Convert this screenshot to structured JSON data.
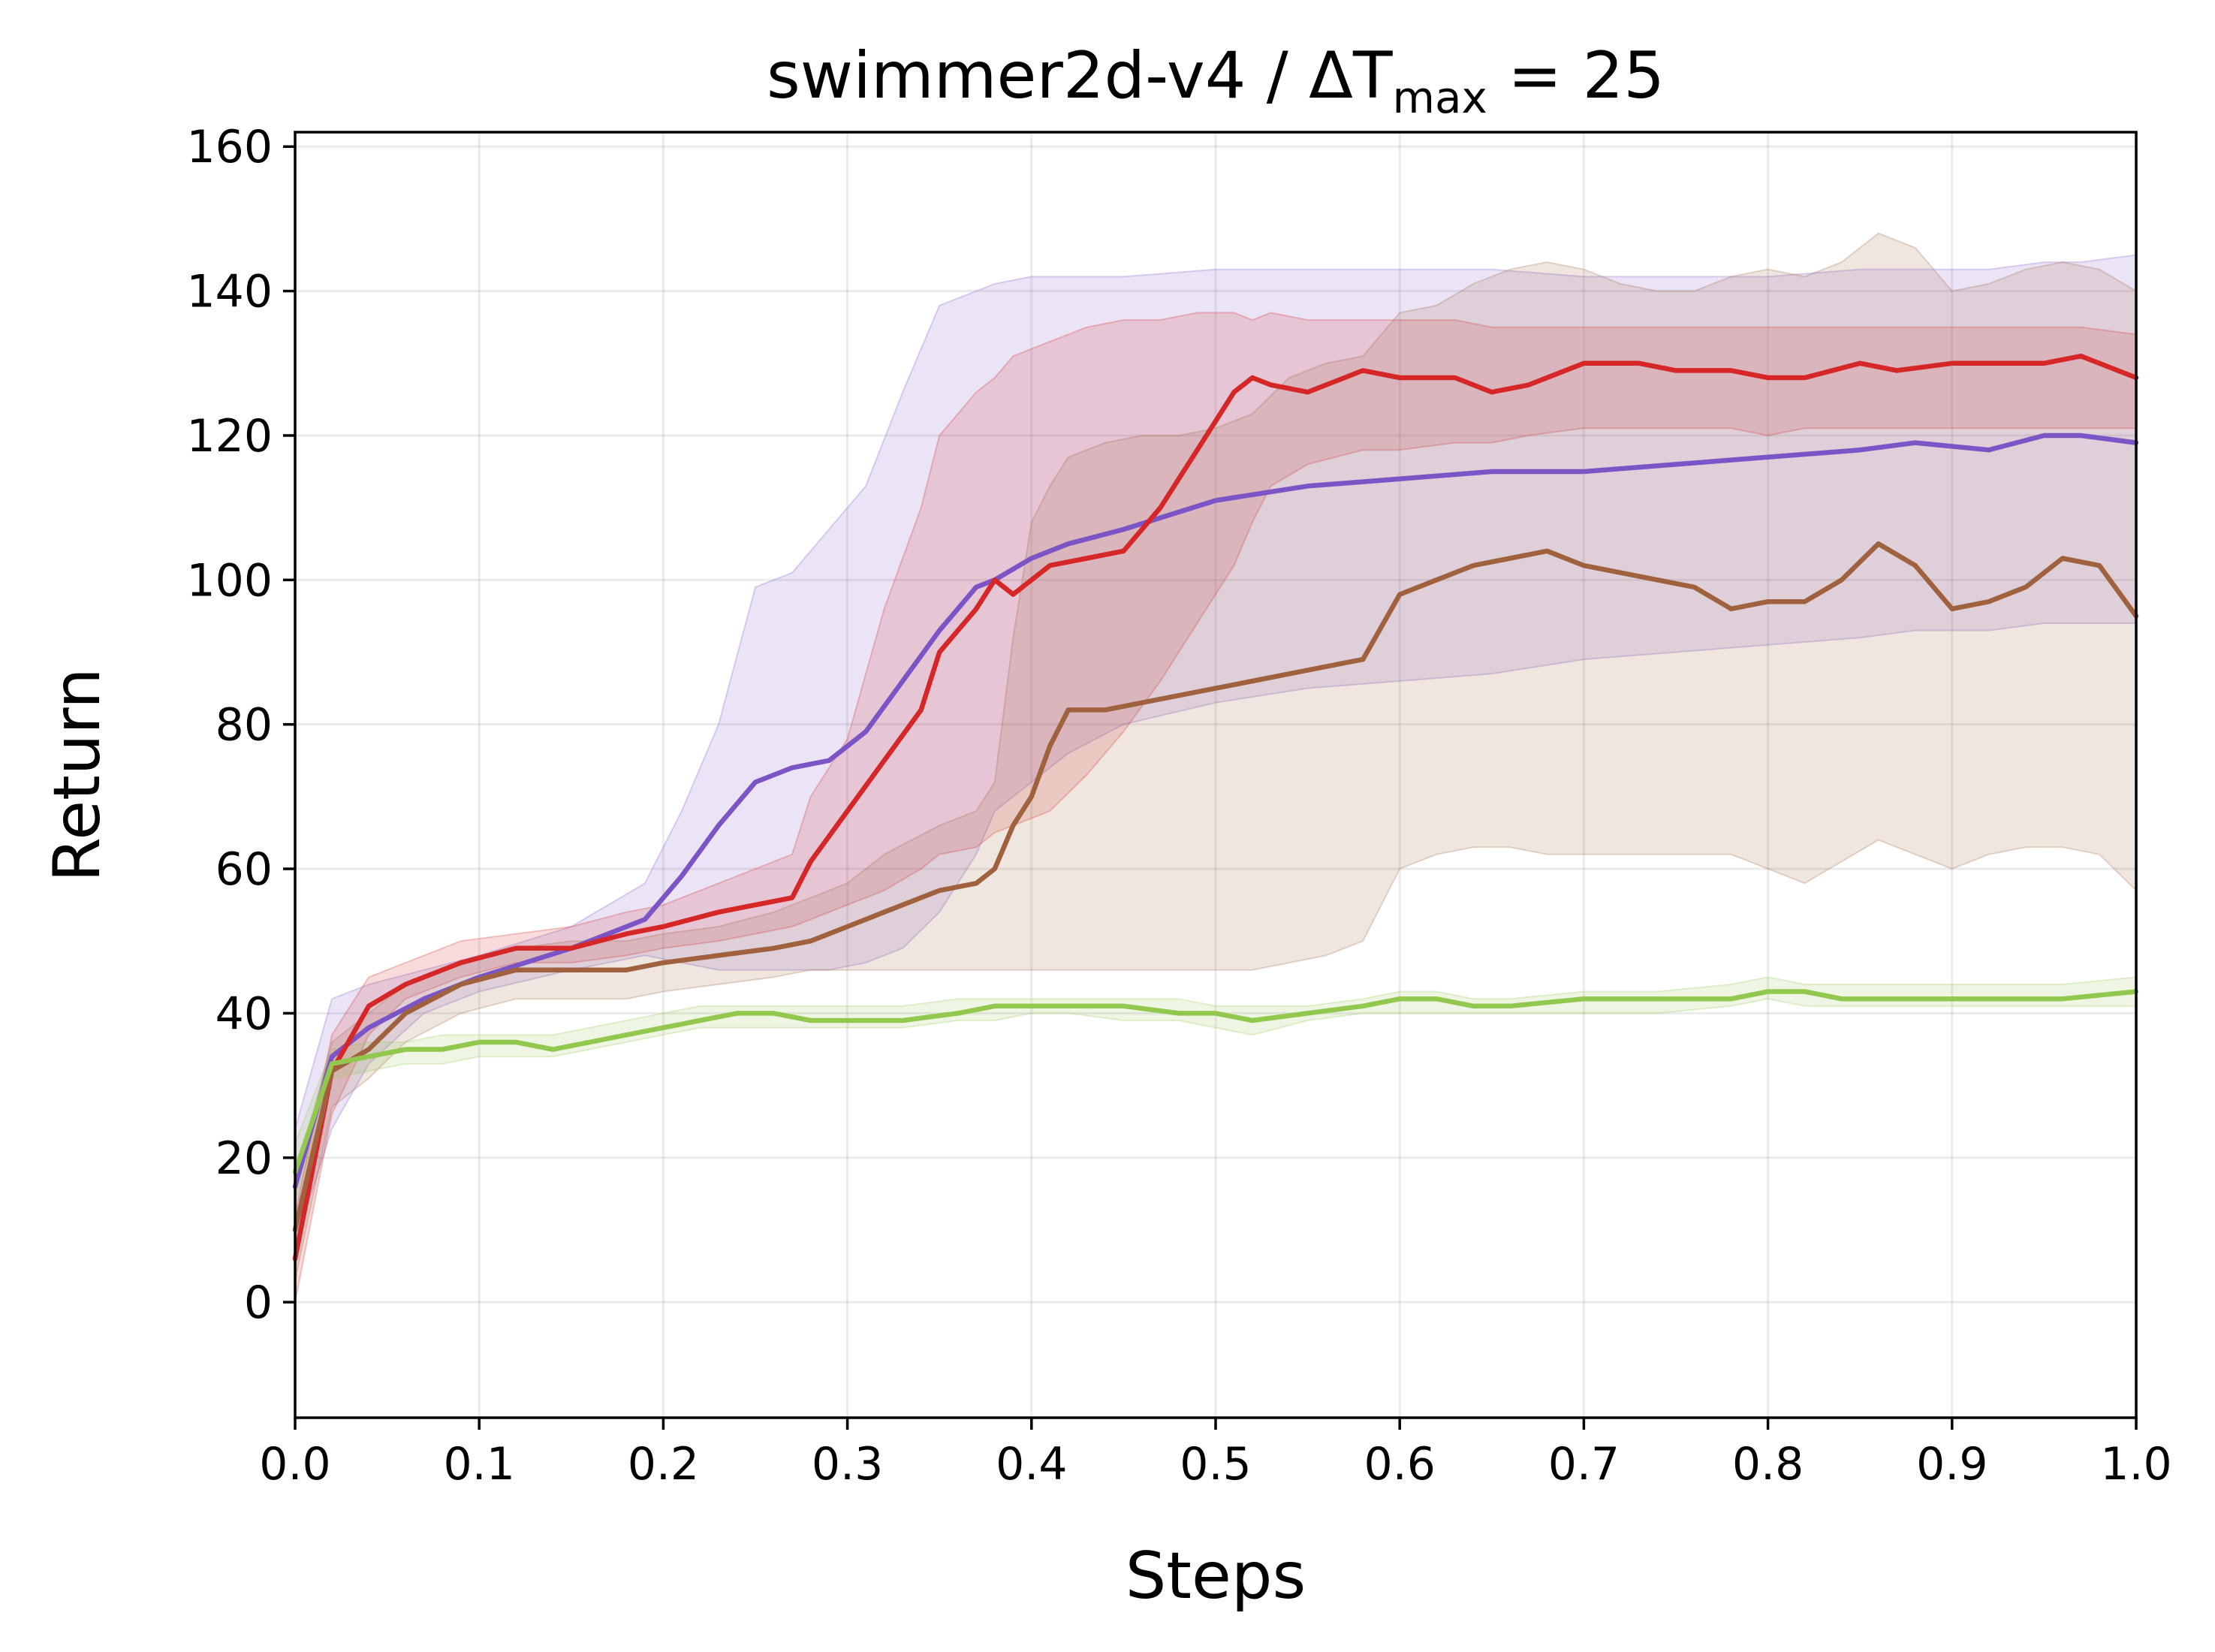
{
  "chart_data": {
    "type": "line",
    "title": {
      "prefix": "swimmer2d-v4 / ΔT",
      "subscript": "max",
      "suffix": " = 25"
    },
    "xlabel": "Steps",
    "ylabel": "Return",
    "xlim": [
      0.0,
      1.0
    ],
    "ylim": [
      -16,
      162
    ],
    "xticks": [
      0.0,
      0.1,
      0.2,
      0.3,
      0.4,
      0.5,
      0.6,
      0.7,
      0.8,
      0.9,
      1.0
    ],
    "xtick_labels": [
      "0.0",
      "0.1",
      "0.2",
      "0.3",
      "0.4",
      "0.5",
      "0.6",
      "0.7",
      "0.8",
      "0.9",
      "1.0"
    ],
    "yticks": [
      0,
      20,
      40,
      60,
      80,
      100,
      120,
      140,
      160
    ],
    "ytick_labels": [
      "0",
      "20",
      "40",
      "60",
      "80",
      "100",
      "120",
      "140",
      "160"
    ],
    "grid": true,
    "legend": "none",
    "series": [
      {
        "color": "#7b55c6",
        "x": [
          0.0,
          0.02,
          0.04,
          0.07,
          0.1,
          0.15,
          0.19,
          0.21,
          0.23,
          0.25,
          0.27,
          0.29,
          0.31,
          0.33,
          0.35,
          0.37,
          0.38,
          0.4,
          0.42,
          0.45,
          0.5,
          0.55,
          0.6,
          0.65,
          0.7,
          0.75,
          0.8,
          0.85,
          0.88,
          0.92,
          0.95,
          0.97,
          1.0
        ],
        "y": [
          16,
          34,
          38,
          42,
          45,
          49,
          53,
          59,
          66,
          72,
          74,
          75,
          79,
          86,
          93,
          99,
          100,
          103,
          105,
          107,
          111,
          113,
          114,
          115,
          115,
          116,
          117,
          118,
          119,
          118,
          120,
          120,
          119
        ],
        "lower": [
          8,
          24,
          33,
          40,
          43,
          46,
          48,
          47,
          46,
          46,
          46,
          46,
          47,
          49,
          54,
          62,
          68,
          72,
          76,
          80,
          83,
          85,
          86,
          87,
          89,
          90,
          91,
          92,
          93,
          93,
          94,
          94,
          94
        ],
        "upper": [
          24,
          42,
          44,
          46,
          48,
          52,
          58,
          68,
          80,
          99,
          101,
          107,
          113,
          126,
          138,
          140,
          141,
          142,
          142,
          142,
          143,
          143,
          143,
          143,
          142,
          142,
          142,
          143,
          143,
          143,
          144,
          144,
          145
        ]
      },
      {
        "color": "#d62728",
        "x": [
          0.0,
          0.02,
          0.04,
          0.06,
          0.09,
          0.12,
          0.15,
          0.18,
          0.2,
          0.23,
          0.25,
          0.27,
          0.28,
          0.3,
          0.32,
          0.34,
          0.35,
          0.37,
          0.38,
          0.39,
          0.41,
          0.43,
          0.45,
          0.47,
          0.49,
          0.51,
          0.52,
          0.53,
          0.55,
          0.58,
          0.6,
          0.63,
          0.65,
          0.67,
          0.7,
          0.73,
          0.75,
          0.78,
          0.8,
          0.82,
          0.85,
          0.87,
          0.9,
          0.92,
          0.95,
          0.97,
          1.0
        ],
        "y": [
          6,
          32,
          41,
          44,
          47,
          49,
          49,
          51,
          52,
          54,
          55,
          56,
          61,
          68,
          75,
          82,
          90,
          96,
          100,
          98,
          102,
          103,
          104,
          110,
          118,
          126,
          128,
          127,
          126,
          129,
          128,
          128,
          126,
          127,
          130,
          130,
          129,
          129,
          128,
          128,
          130,
          129,
          130,
          130,
          130,
          131,
          128
        ],
        "lower": [
          0,
          26,
          37,
          42,
          45,
          47,
          47,
          48,
          49,
          50,
          51,
          52,
          53,
          55,
          57,
          60,
          62,
          63,
          65,
          66,
          68,
          73,
          79,
          86,
          94,
          102,
          108,
          113,
          116,
          118,
          118,
          119,
          119,
          120,
          121,
          121,
          121,
          121,
          120,
          121,
          121,
          121,
          121,
          121,
          121,
          121,
          121
        ],
        "upper": [
          12,
          37,
          45,
          47,
          50,
          51,
          52,
          54,
          55,
          58,
          60,
          62,
          70,
          78,
          96,
          110,
          120,
          126,
          128,
          131,
          133,
          135,
          136,
          136,
          137,
          137,
          136,
          137,
          136,
          136,
          136,
          136,
          135,
          135,
          135,
          135,
          135,
          135,
          135,
          135,
          135,
          135,
          135,
          135,
          135,
          135,
          134
        ]
      },
      {
        "color": "#a0623e",
        "x": [
          0.0,
          0.02,
          0.04,
          0.06,
          0.09,
          0.12,
          0.15,
          0.18,
          0.2,
          0.23,
          0.26,
          0.28,
          0.3,
          0.32,
          0.35,
          0.37,
          0.38,
          0.39,
          0.4,
          0.41,
          0.42,
          0.44,
          0.46,
          0.48,
          0.5,
          0.52,
          0.54,
          0.56,
          0.58,
          0.6,
          0.62,
          0.64,
          0.66,
          0.68,
          0.7,
          0.72,
          0.74,
          0.76,
          0.78,
          0.8,
          0.82,
          0.84,
          0.86,
          0.88,
          0.9,
          0.92,
          0.94,
          0.96,
          0.98,
          1.0
        ],
        "y": [
          10,
          32,
          35,
          40,
          44,
          46,
          46,
          46,
          47,
          48,
          49,
          50,
          52,
          54,
          57,
          58,
          60,
          66,
          70,
          77,
          82,
          82,
          83,
          84,
          85,
          86,
          87,
          88,
          89,
          98,
          100,
          102,
          103,
          104,
          102,
          101,
          100,
          99,
          96,
          97,
          97,
          100,
          105,
          102,
          96,
          97,
          99,
          103,
          102,
          95
        ],
        "lower": [
          3,
          27,
          31,
          36,
          40,
          42,
          42,
          42,
          43,
          44,
          45,
          46,
          46,
          46,
          46,
          46,
          46,
          46,
          46,
          46,
          46,
          46,
          46,
          46,
          46,
          46,
          47,
          48,
          50,
          60,
          62,
          63,
          63,
          62,
          62,
          62,
          62,
          62,
          62,
          60,
          58,
          61,
          64,
          62,
          60,
          62,
          63,
          63,
          62,
          57
        ],
        "upper": [
          17,
          36,
          40,
          44,
          47,
          49,
          50,
          50,
          51,
          52,
          54,
          56,
          58,
          62,
          66,
          68,
          72,
          92,
          108,
          113,
          117,
          119,
          120,
          120,
          121,
          123,
          128,
          130,
          131,
          137,
          138,
          141,
          143,
          144,
          143,
          141,
          140,
          140,
          142,
          143,
          142,
          144,
          148,
          146,
          140,
          141,
          143,
          144,
          143,
          140
        ]
      },
      {
        "color": "#93c84f",
        "x": [
          0.0,
          0.02,
          0.04,
          0.06,
          0.08,
          0.1,
          0.12,
          0.14,
          0.16,
          0.18,
          0.2,
          0.22,
          0.24,
          0.26,
          0.28,
          0.3,
          0.33,
          0.36,
          0.38,
          0.4,
          0.42,
          0.45,
          0.48,
          0.5,
          0.52,
          0.55,
          0.58,
          0.6,
          0.62,
          0.64,
          0.66,
          0.7,
          0.74,
          0.78,
          0.8,
          0.82,
          0.84,
          0.88,
          0.9,
          0.93,
          0.96,
          1.0
        ],
        "y": [
          18,
          33,
          34,
          35,
          35,
          36,
          36,
          35,
          36,
          37,
          38,
          39,
          40,
          40,
          39,
          39,
          39,
          40,
          41,
          41,
          41,
          41,
          40,
          40,
          39,
          40,
          41,
          42,
          42,
          41,
          41,
          42,
          42,
          42,
          43,
          43,
          42,
          42,
          42,
          42,
          42,
          43
        ],
        "lower": [
          14,
          31,
          32,
          33,
          33,
          34,
          34,
          34,
          35,
          36,
          37,
          38,
          38,
          38,
          38,
          38,
          38,
          39,
          39,
          40,
          40,
          39,
          39,
          38,
          37,
          39,
          40,
          40,
          40,
          40,
          40,
          40,
          40,
          41,
          42,
          41,
          41,
          41,
          41,
          41,
          41,
          41
        ],
        "upper": [
          22,
          35,
          36,
          36,
          37,
          37,
          37,
          37,
          38,
          39,
          40,
          41,
          41,
          41,
          41,
          41,
          41,
          42,
          42,
          42,
          42,
          42,
          42,
          41,
          41,
          41,
          42,
          43,
          43,
          42,
          42,
          43,
          43,
          44,
          45,
          44,
          44,
          44,
          44,
          44,
          44,
          45
        ]
      }
    ]
  }
}
